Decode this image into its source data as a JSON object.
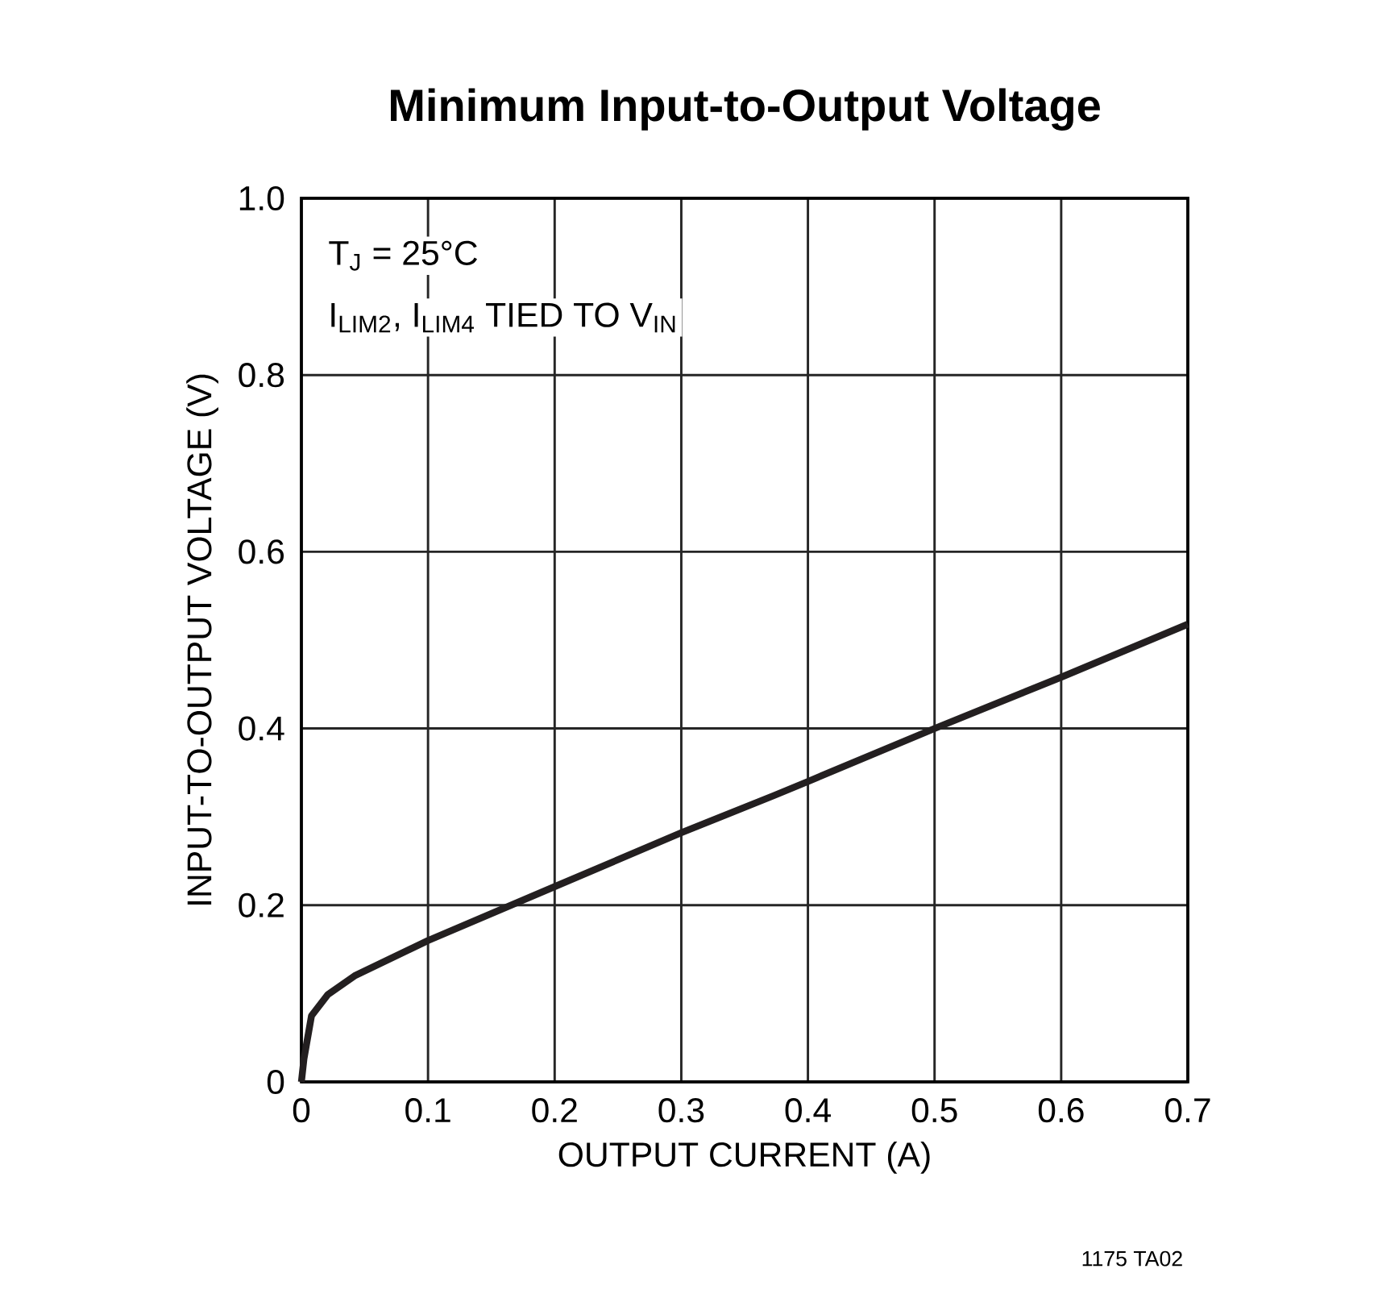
{
  "chart_data": {
    "type": "line",
    "title": "Minimum Input-to-Output Voltage",
    "xlabel": "OUTPUT CURRENT (A)",
    "ylabel": "INPUT-TO-OUTPUT VOLTAGE (V)",
    "annotations": [
      "T$_{J}$ = 25°C",
      "I$_{LIM2}$, I$_{LIM4}$ TIED TO V$_{IN}$",
      "1175 TA02"
    ],
    "series": [
      {
        "color": "#231f20",
        "x": [
          0,
          0.002,
          0.008,
          0.021,
          0.042,
          0.1,
          0.2,
          0.3,
          0.373,
          0.4,
          0.5,
          0.6,
          0.7
        ],
        "values": [
          0,
          0.026,
          0.075,
          0.099,
          0.12,
          0.16,
          0.221,
          0.282,
          0.324,
          0.34,
          0.4,
          0.458,
          0.518
        ]
      }
    ],
    "xlim": [
      0,
      0.7
    ],
    "ylim": [
      0,
      1
    ],
    "xticks": [
      0,
      0.1,
      0.2,
      0.3,
      0.4,
      0.5,
      0.6,
      0.7
    ],
    "yticks": [
      0,
      0.2,
      0.4,
      0.6,
      0.8,
      {
        "value": 1,
        "label": "1.0"
      }
    ],
    "grid": true,
    "marker": "none",
    "line_style": "solid"
  }
}
